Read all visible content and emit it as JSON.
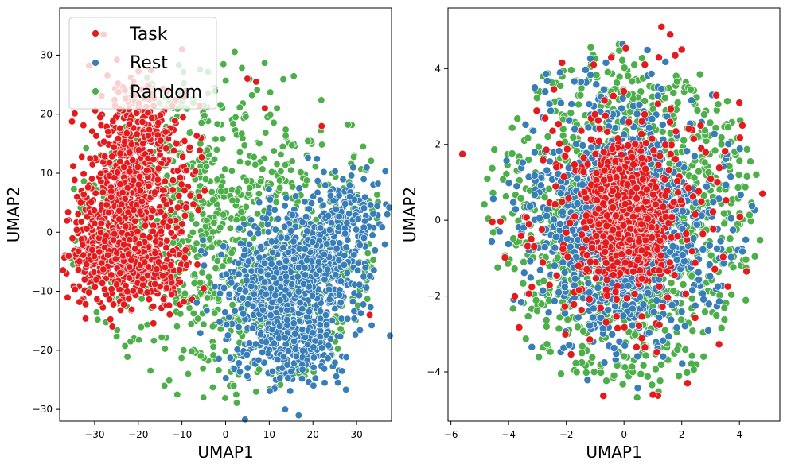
{
  "chart_data": [
    {
      "type": "scatter",
      "title": "",
      "xlabel": "UMAP1",
      "ylabel": "UMAP2",
      "xlim": [
        -38,
        38
      ],
      "ylim": [
        -32,
        38
      ],
      "xticks": [
        -30,
        -20,
        -10,
        0,
        10,
        20,
        30
      ],
      "yticks": [
        -30,
        -20,
        -10,
        0,
        10,
        20,
        30
      ],
      "legend": {
        "position": "top-left",
        "entries": [
          {
            "label": "Task",
            "color": "#e41a1c"
          },
          {
            "label": "Rest",
            "color": "#377eb8"
          },
          {
            "label": "Random",
            "color": "#4daf4a"
          }
        ]
      },
      "series": [
        {
          "name": "Random",
          "color": "#4daf4a",
          "count": 1100,
          "clusters": [
            {
              "cx": -12,
              "cy": 5,
              "sx": 16,
              "sy": 14,
              "weight": 0.45
            },
            {
              "cx": 10,
              "cy": -6,
              "sx": 16,
              "sy": 13,
              "weight": 0.55
            }
          ],
          "bounds": {
            "cx": 0,
            "cy": 1,
            "rx": 36,
            "ry": 30
          }
        },
        {
          "name": "Task",
          "color": "#e41a1c",
          "count": 1150,
          "clusters": [
            {
              "cx": -20,
              "cy": 14,
              "sx": 5.5,
              "sy": 6,
              "weight": 0.34
            },
            {
              "cx": -22,
              "cy": 4,
              "sx": 6,
              "sy": 5,
              "weight": 0.26
            },
            {
              "cx": -28,
              "cy": -4,
              "sx": 4,
              "sy": 4,
              "weight": 0.2
            },
            {
              "cx": -18,
              "cy": -7,
              "sx": 5,
              "sy": 3,
              "weight": 0.2
            }
          ],
          "outliers": [
            {
              "x": 5,
              "y": 26
            },
            {
              "x": 7,
              "y": 25.5
            },
            {
              "x": 9,
              "y": 21
            },
            {
              "x": 22,
              "y": 18
            },
            {
              "x": 33,
              "y": -14
            },
            {
              "x": -34,
              "y": 6
            }
          ]
        },
        {
          "name": "Rest",
          "color": "#377eb8",
          "count": 1050,
          "clusters": [
            {
              "cx": 12,
              "cy": -10,
              "sx": 7,
              "sy": 6.5,
              "weight": 0.45
            },
            {
              "cx": 22,
              "cy": -5,
              "sx": 6,
              "sy": 6,
              "weight": 0.3
            },
            {
              "cx": 28,
              "cy": 4,
              "sx": 4,
              "sy": 4,
              "weight": 0.1
            },
            {
              "cx": 15,
              "cy": -20,
              "sx": 6,
              "sy": 3,
              "weight": 0.15
            }
          ]
        }
      ]
    },
    {
      "type": "scatter",
      "title": "",
      "xlabel": "UMAP1",
      "ylabel": "UMAP2",
      "xlim": [
        -6.1,
        5.4
      ],
      "ylim": [
        -5.3,
        5.6
      ],
      "xticks": [
        -6,
        -4,
        -2,
        0,
        2,
        4
      ],
      "yticks": [
        -4,
        -2,
        0,
        2,
        4
      ],
      "series": [
        {
          "name": "Random",
          "color": "#4daf4a",
          "count": 1200,
          "clusters": [
            {
              "cx": 0,
              "cy": 0,
              "sx": 2.2,
              "sy": 2.3,
              "weight": 1.0
            }
          ],
          "bounds": {
            "cx": 0,
            "cy": 0,
            "rx": 4.9,
            "ry": 4.7
          }
        },
        {
          "name": "Rest",
          "color": "#377eb8",
          "count": 1150,
          "clusters": [
            {
              "cx": 0,
              "cy": 0,
              "sx": 1.25,
              "sy": 1.2,
              "weight": 0.6
            },
            {
              "cx": 0,
              "cy": 0,
              "sx": 2.3,
              "sy": 2.3,
              "weight": 0.4
            }
          ],
          "bounds": {
            "cx": 0,
            "cy": 0,
            "rx": 4.8,
            "ry": 4.7
          }
        },
        {
          "name": "Task",
          "color": "#e41a1c",
          "count": 900,
          "clusters": [
            {
              "cx": 0,
              "cy": 0.2,
              "sx": 0.75,
              "sy": 0.85,
              "weight": 0.72
            },
            {
              "cx": 0,
              "cy": 0,
              "sx": 2.0,
              "sy": 2.0,
              "weight": 0.28
            }
          ],
          "bounds": {
            "cx": 0,
            "cy": 0,
            "rx": 4.9,
            "ry": 4.9
          },
          "outliers": [
            {
              "x": -5.6,
              "y": 1.75
            },
            {
              "x": 1.3,
              "y": 5.1
            },
            {
              "x": 1.6,
              "y": 4.9
            },
            {
              "x": 4.8,
              "y": 0.7
            },
            {
              "x": 4.1,
              "y": 2.5
            },
            {
              "x": 3.2,
              "y": 3.3
            },
            {
              "x": 2.0,
              "y": 4.5
            },
            {
              "x": 4.0,
              "y": 3.1
            },
            {
              "x": 1.0,
              "y": -4.6
            },
            {
              "x": 2.2,
              "y": -4.3
            }
          ]
        }
      ]
    }
  ]
}
